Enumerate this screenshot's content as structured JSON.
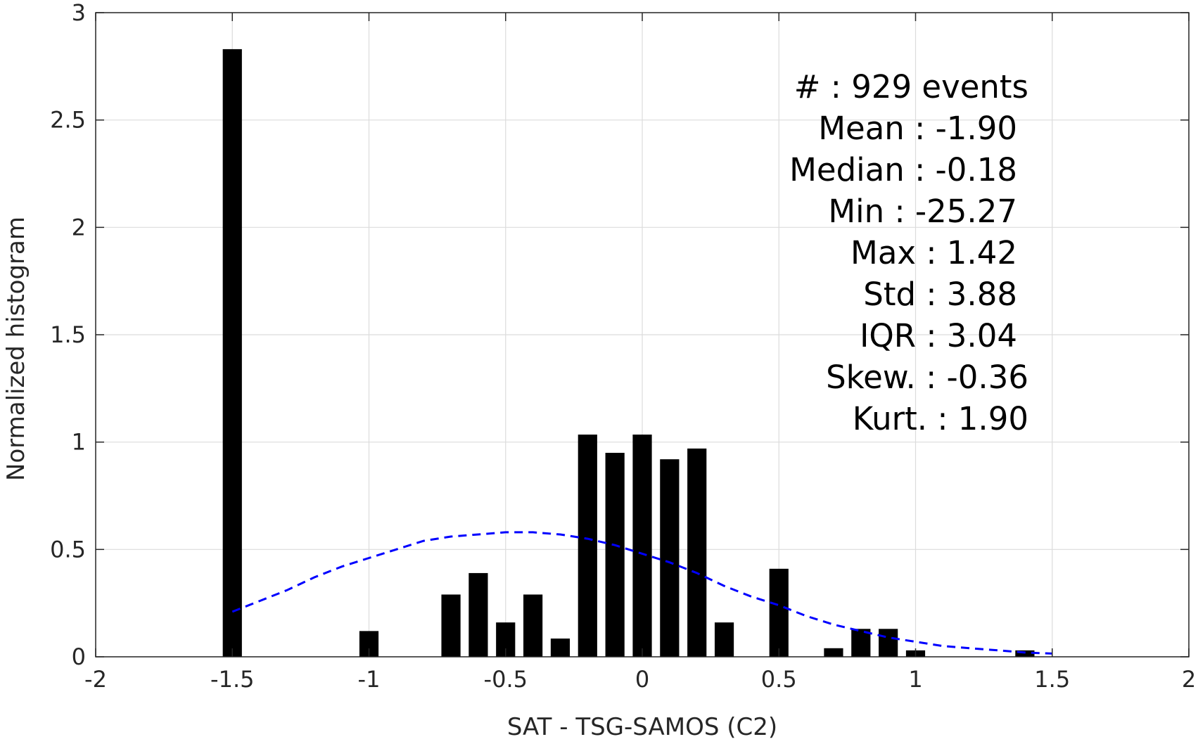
{
  "chart_data": {
    "type": "bar",
    "xlabel": "SAT - TSG-SAMOS (C2)",
    "ylabel": "Normalized histogram",
    "xlim": [
      -2,
      2
    ],
    "ylim": [
      0,
      3
    ],
    "xticks": [
      -2,
      -1.5,
      -1,
      -0.5,
      0,
      0.5,
      1,
      1.5,
      2
    ],
    "xtick_labels": [
      "-2",
      "-1.5",
      "-1",
      "-0.5",
      "0",
      "0.5",
      "1",
      "1.5",
      "2"
    ],
    "yticks": [
      0,
      0.5,
      1,
      1.5,
      2,
      2.5,
      3
    ],
    "ytick_labels": [
      "0",
      "0.5",
      "1",
      "1.5",
      "2",
      "2.5",
      "3"
    ],
    "grid": true,
    "bar_width": 0.07,
    "bar_color": "#000000",
    "bars": [
      {
        "x": -1.5,
        "y": 2.83
      },
      {
        "x": -1.0,
        "y": 0.12
      },
      {
        "x": -0.7,
        "y": 0.29
      },
      {
        "x": -0.6,
        "y": 0.39
      },
      {
        "x": -0.5,
        "y": 0.16
      },
      {
        "x": -0.4,
        "y": 0.29
      },
      {
        "x": -0.3,
        "y": 0.085
      },
      {
        "x": -0.2,
        "y": 1.035
      },
      {
        "x": -0.1,
        "y": 0.95
      },
      {
        "x": 0.0,
        "y": 1.035
      },
      {
        "x": 0.1,
        "y": 0.92
      },
      {
        "x": 0.2,
        "y": 0.97
      },
      {
        "x": 0.3,
        "y": 0.16
      },
      {
        "x": 0.5,
        "y": 0.41
      },
      {
        "x": 0.7,
        "y": 0.04
      },
      {
        "x": 0.8,
        "y": 0.13
      },
      {
        "x": 0.9,
        "y": 0.13
      },
      {
        "x": 1.0,
        "y": 0.03
      },
      {
        "x": 1.4,
        "y": 0.03
      }
    ],
    "fit_curve": {
      "style": "dashed",
      "color": "#0000ff",
      "x": [
        -1.5,
        -1.4,
        -1.3,
        -1.2,
        -1.1,
        -1.0,
        -0.9,
        -0.8,
        -0.7,
        -0.6,
        -0.5,
        -0.45,
        -0.4,
        -0.3,
        -0.2,
        -0.1,
        0.0,
        0.1,
        0.2,
        0.3,
        0.4,
        0.5,
        0.6,
        0.7,
        0.8,
        0.9,
        1.0,
        1.1,
        1.2,
        1.3,
        1.4,
        1.5
      ],
      "y": [
        0.21,
        0.26,
        0.31,
        0.37,
        0.42,
        0.46,
        0.5,
        0.54,
        0.56,
        0.57,
        0.58,
        0.58,
        0.58,
        0.57,
        0.55,
        0.52,
        0.48,
        0.44,
        0.39,
        0.33,
        0.28,
        0.24,
        0.19,
        0.15,
        0.12,
        0.09,
        0.07,
        0.05,
        0.04,
        0.03,
        0.02,
        0.015
      ]
    },
    "annotations": [
      "#  : 929 events",
      "Mean : -1.90",
      "Median : -0.18",
      "Min : -25.27",
      "Max : 1.42",
      "Std : 3.88",
      "IQR : 3.04",
      "Skew. : -0.36",
      "Kurt. : 1.90"
    ],
    "colors": {
      "axis": "#262626",
      "grid": "#dcdcdc",
      "background": "#ffffff"
    }
  }
}
